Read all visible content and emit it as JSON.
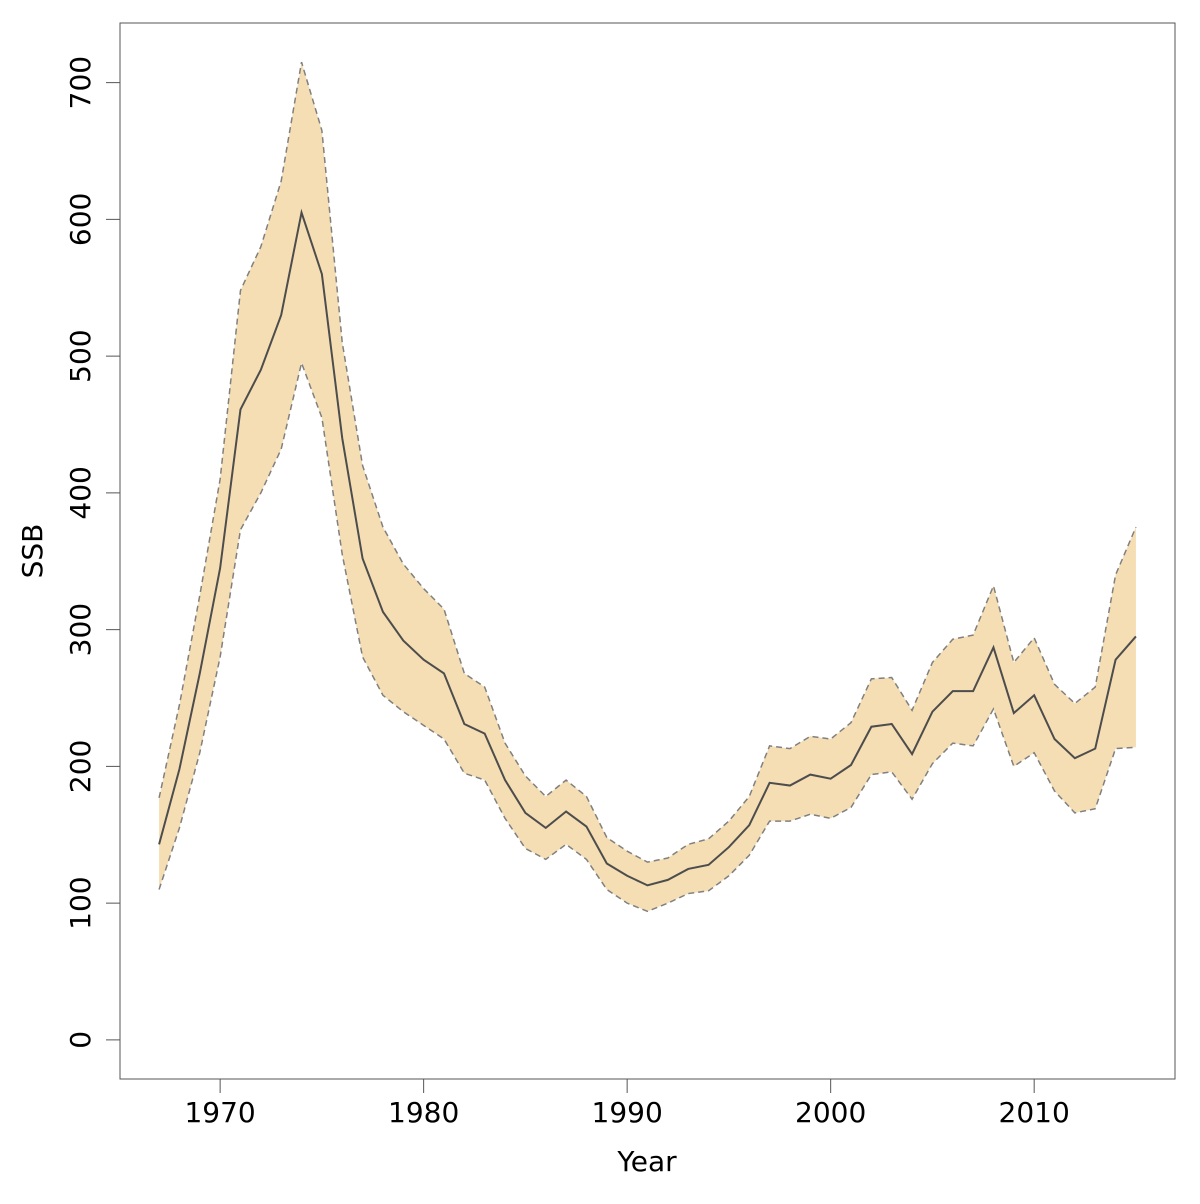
{
  "chart_data": {
    "type": "line-band",
    "xlabel": "Year",
    "ylabel": "SSB",
    "x": [
      1967,
      1968,
      1969,
      1970,
      1971,
      1972,
      1973,
      1974,
      1975,
      1976,
      1977,
      1978,
      1979,
      1980,
      1981,
      1982,
      1983,
      1984,
      1985,
      1986,
      1987,
      1988,
      1989,
      1990,
      1991,
      1992,
      1993,
      1994,
      1995,
      1996,
      1997,
      1998,
      1999,
      2000,
      2001,
      2002,
      2003,
      2004,
      2005,
      2006,
      2007,
      2008,
      2009,
      2010,
      2011,
      2012,
      2013,
      2014,
      2015
    ],
    "values": [
      143,
      198,
      268,
      345,
      461,
      490,
      530,
      605,
      560,
      440,
      352,
      313,
      292,
      278,
      268,
      231,
      224,
      190,
      166,
      155,
      167,
      156,
      129,
      120,
      113,
      117,
      125,
      128,
      141,
      157,
      188,
      186,
      194,
      191,
      201,
      229,
      231,
      209,
      240,
      255,
      255,
      287,
      239,
      252,
      220,
      206,
      213,
      278,
      295
    ],
    "upper": [
      177,
      245,
      325,
      410,
      548,
      580,
      628,
      715,
      665,
      510,
      420,
      375,
      348,
      330,
      315,
      268,
      258,
      217,
      193,
      178,
      190,
      178,
      148,
      138,
      130,
      133,
      143,
      147,
      160,
      178,
      215,
      213,
      222,
      220,
      232,
      264,
      265,
      241,
      276,
      293,
      296,
      332,
      276,
      294,
      260,
      246,
      258,
      340,
      375
    ],
    "lower": [
      110,
      155,
      210,
      280,
      373,
      400,
      432,
      495,
      455,
      355,
      280,
      252,
      240,
      230,
      220,
      195,
      190,
      162,
      140,
      132,
      143,
      132,
      110,
      100,
      94,
      100,
      107,
      109,
      120,
      135,
      160,
      160,
      165,
      162,
      170,
      194,
      196,
      176,
      202,
      217,
      215,
      242,
      200,
      210,
      182,
      166,
      169,
      213,
      214
    ],
    "color": "#4d4d4d",
    "band_color": "#f5deb3",
    "bound_color": "#808080",
    "xlim": [
      1965.08,
      2016.92
    ],
    "xticks": [
      1970,
      1980,
      1990,
      2000,
      2010
    ],
    "ylim": [
      -28.6,
      743.6
    ],
    "yticks": [
      0,
      100,
      200,
      300,
      400,
      500,
      600,
      700
    ]
  }
}
